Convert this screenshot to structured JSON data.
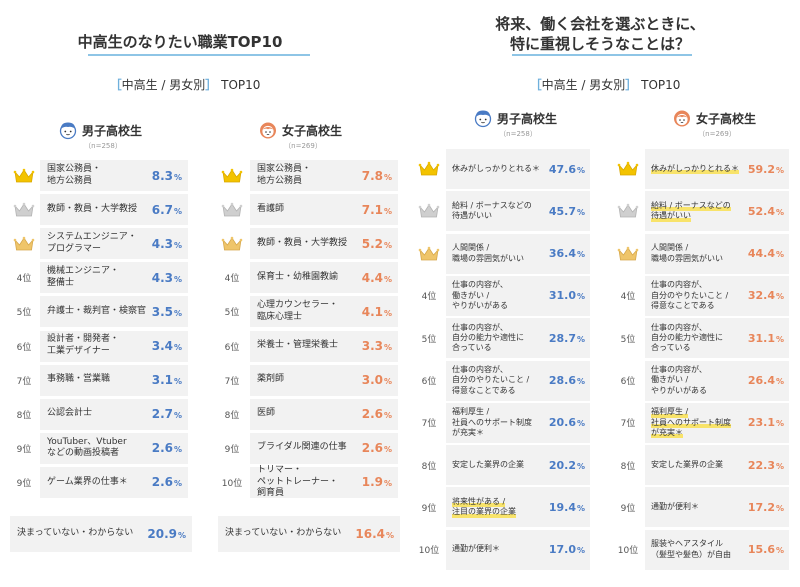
{
  "left_title": "中高生のなりたい職業TOP10",
  "right_title_lines": [
    "将来、働く会社を選ぶときに、",
    "特に重視しそうなことは？"
  ],
  "subtitle": {
    "open": "［",
    "text": "中高生 / 男女別",
    "close": "］",
    "suffix": "TOP10"
  },
  "colors": {
    "male_value": "#4a7bc4",
    "female_value": "#e8865a",
    "row_bg": "#f2f2f2",
    "title_rule": "#8ec5e6",
    "highlight": "#f8e36a"
  },
  "chart_data": [
    {
      "type": "table",
      "title": "中高生のなりたい職業TOP10",
      "groups": [
        {
          "name": "男子高校生",
          "n": "（n=258）",
          "icon": "boy-avatar-icon",
          "value_color": "blue",
          "rows": [
            {
              "rank": "",
              "medal": "gold",
              "label": [
                "国家公務員・",
                "地方公務員"
              ],
              "value": "8.3"
            },
            {
              "rank": "",
              "medal": "silver",
              "label": [
                "教師・教員・大学教授"
              ],
              "value": "6.7"
            },
            {
              "rank": "",
              "medal": "bronze",
              "label": [
                "システムエンジニア・",
                "プログラマー"
              ],
              "value": "4.3"
            },
            {
              "rank": "4位",
              "label": [
                "機械エンジニア・",
                "整備士"
              ],
              "value": "4.3"
            },
            {
              "rank": "5位",
              "label": [
                "弁護士・裁判官・検察官"
              ],
              "value": "3.5"
            },
            {
              "rank": "6位",
              "label": [
                "設計者・開発者・",
                "工業デザイナー"
              ],
              "value": "3.4"
            },
            {
              "rank": "7位",
              "label": [
                "事務職・営業職"
              ],
              "value": "3.1"
            },
            {
              "rank": "8位",
              "label": [
                "公認会計士"
              ],
              "value": "2.7"
            },
            {
              "rank": "9位",
              "label": [
                "YouTuber、Vtuber",
                "などの動画投稿者"
              ],
              "value": "2.6"
            },
            {
              "rank": "9位",
              "label": [
                "ゲーム業界の仕事＊"
              ],
              "value": "2.6"
            }
          ],
          "undecided": {
            "label": "決まっていない・わからない",
            "value": "20.9"
          }
        },
        {
          "name": "女子高校生",
          "n": "（n=269）",
          "icon": "girl-avatar-icon",
          "value_color": "orange",
          "rows": [
            {
              "rank": "",
              "medal": "gold",
              "label": [
                "国家公務員・",
                "地方公務員"
              ],
              "value": "7.8"
            },
            {
              "rank": "",
              "medal": "silver",
              "label": [
                "看護師"
              ],
              "value": "7.1"
            },
            {
              "rank": "",
              "medal": "bronze",
              "label": [
                "教師・教員・大学教授"
              ],
              "value": "5.2"
            },
            {
              "rank": "4位",
              "label": [
                "保育士・幼稚園教諭"
              ],
              "value": "4.4"
            },
            {
              "rank": "5位",
              "label": [
                "心理カウンセラー・",
                "臨床心理士"
              ],
              "value": "4.1"
            },
            {
              "rank": "6位",
              "label": [
                "栄養士・管理栄養士"
              ],
              "value": "3.3"
            },
            {
              "rank": "7位",
              "label": [
                "薬剤師"
              ],
              "value": "3.0"
            },
            {
              "rank": "8位",
              "label": [
                "医師"
              ],
              "value": "2.6"
            },
            {
              "rank": "9位",
              "label": [
                "ブライダル関連の仕事"
              ],
              "value": "2.6"
            },
            {
              "rank": "10位",
              "label": [
                "トリマー・",
                "ペットトレーナー・",
                "飼育員"
              ],
              "value": "1.9"
            }
          ],
          "undecided": {
            "label": "決まっていない・わからない",
            "value": "16.4"
          }
        }
      ]
    },
    {
      "type": "table",
      "title": "将来、働く会社を選ぶときに、特に重視しそうなことは？",
      "groups": [
        {
          "name": "男子高校生",
          "n": "（n=258）",
          "icon": "boy-avatar-icon",
          "value_color": "blue",
          "rows": [
            {
              "rank": "",
              "medal": "gold",
              "label": [
                "休みがしっかりとれる＊"
              ],
              "value": "47.6"
            },
            {
              "rank": "",
              "medal": "silver",
              "label": [
                "給料 / ボーナスなどの",
                "待遇がいい"
              ],
              "value": "45.7"
            },
            {
              "rank": "",
              "medal": "bronze",
              "label": [
                "人間関係 /",
                "職場の雰囲気がいい"
              ],
              "value": "36.4"
            },
            {
              "rank": "4位",
              "label": [
                "仕事の内容が、",
                "働きがい /",
                "やりがいがある"
              ],
              "value": "31.0"
            },
            {
              "rank": "5位",
              "label": [
                "仕事の内容が、",
                "自分の能力や適性に",
                "合っている"
              ],
              "value": "28.7"
            },
            {
              "rank": "6位",
              "label": [
                "仕事の内容が、",
                "自分のやりたいこと /",
                "得意なことである"
              ],
              "value": "28.6"
            },
            {
              "rank": "7位",
              "label": [
                "福利厚生 /",
                "社員へのサポート制度",
                "が充実＊"
              ],
              "value": "20.6"
            },
            {
              "rank": "8位",
              "label": [
                "安定した業界の企業"
              ],
              "value": "20.2"
            },
            {
              "rank": "9位",
              "highlight": true,
              "label": [
                "将来性がある /",
                "注目の業界の企業"
              ],
              "value": "19.4"
            },
            {
              "rank": "10位",
              "label": [
                "通勤が便利＊"
              ],
              "value": "17.0"
            }
          ]
        },
        {
          "name": "女子高校生",
          "n": "（n=269）",
          "icon": "girl-avatar-icon",
          "value_color": "orange",
          "rows": [
            {
              "rank": "",
              "medal": "gold",
              "highlight": true,
              "label": [
                "休みがしっかりとれる＊"
              ],
              "value": "59.2"
            },
            {
              "rank": "",
              "medal": "silver",
              "highlight": true,
              "label": [
                "給料 / ボーナスなどの",
                "待遇がいい"
              ],
              "value": "52.4"
            },
            {
              "rank": "",
              "medal": "bronze",
              "label": [
                "人間関係 /",
                "職場の雰囲気がいい"
              ],
              "value": "44.4"
            },
            {
              "rank": "4位",
              "label": [
                "仕事の内容が、",
                "自分のやりたいこと /",
                "得意なことである"
              ],
              "value": "32.4"
            },
            {
              "rank": "5位",
              "label": [
                "仕事の内容が、",
                "自分の能力や適性に",
                "合っている"
              ],
              "value": "31.1"
            },
            {
              "rank": "6位",
              "label": [
                "仕事の内容が、",
                "働きがい /",
                "やりがいがある"
              ],
              "value": "26.4"
            },
            {
              "rank": "7位",
              "highlight": true,
              "label": [
                "福利厚生 /",
                "社員へのサポート制度",
                "が充実＊"
              ],
              "value": "23.1"
            },
            {
              "rank": "8位",
              "label": [
                "安定した業界の企業"
              ],
              "value": "22.3"
            },
            {
              "rank": "9位",
              "label": [
                "通勤が便利＊"
              ],
              "value": "17.2"
            },
            {
              "rank": "10位",
              "label": [
                "服装やヘアスタイル",
                "（髪型や髪色）が自由"
              ],
              "value": "15.6"
            }
          ]
        }
      ]
    }
  ],
  "percent_sign": "%"
}
